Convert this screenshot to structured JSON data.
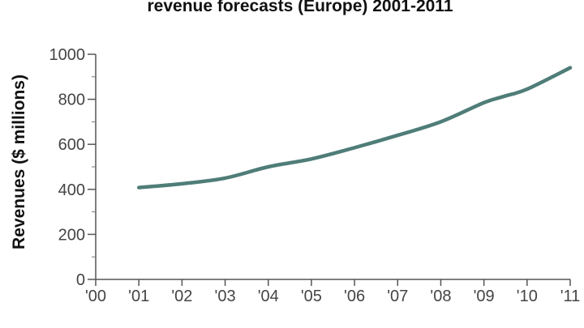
{
  "chart_data": {
    "type": "line",
    "title": "revenue forecasts (Europe) 2001-2011",
    "xlabel": "",
    "ylabel": "Revenues ($ millions)",
    "categories": [
      "'00",
      "'01",
      "'02",
      "'03",
      "'04",
      "'05",
      "'06",
      "'07",
      "'08",
      "'09",
      "'10",
      "'11"
    ],
    "x": [
      2000,
      2001,
      2002,
      2003,
      2004,
      2005,
      2006,
      2007,
      2008,
      2009,
      2010,
      2011
    ],
    "xlim": [
      2000,
      2011
    ],
    "ylim": [
      0,
      1000
    ],
    "yticks": [
      0,
      200,
      400,
      600,
      800,
      1000
    ],
    "y_minor_step": 100,
    "grid": false,
    "series": [
      {
        "name": "Revenues",
        "color": "#4f7d78",
        "x": [
          2001,
          2002,
          2003,
          2004,
          2005,
          2006,
          2007,
          2008,
          2009,
          2009.5,
          2010,
          2011
        ],
        "values": [
          408,
          425,
          450,
          500,
          535,
          585,
          640,
          700,
          785,
          815,
          845,
          940
        ]
      }
    ]
  }
}
